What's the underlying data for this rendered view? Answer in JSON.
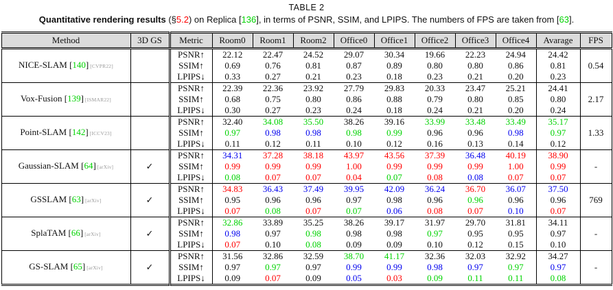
{
  "page": {
    "title": "TABLE 2"
  },
  "caption": {
    "bold": "Quantitative rendering results",
    "s1": " (§",
    "sec": "5.2",
    "s2": ") on Replica [",
    "ref1": "136",
    "s3": "], in terms of PSNR, SSIM, and LPIPS. The numbers of FPS are taken from [",
    "ref2": "63",
    "s4": "]."
  },
  "palette": {
    "black": "#111111",
    "red": "#ff0000",
    "green": "#00d300",
    "blue": "#0000ee",
    "venue_gray": "#999999",
    "header_bg": "#dcdcdc",
    "border": "#000000"
  },
  "table": {
    "brackets": [
      "[",
      "]"
    ],
    "check_glyph": "✓",
    "header": {
      "method": "Method",
      "gs": "3D GS",
      "metric": "Metric",
      "scenes": [
        "Room0",
        "Room1",
        "Room2",
        "Office0",
        "Office1",
        "Office2",
        "Office3",
        "Office4"
      ],
      "average": "Avarage",
      "fps": "FPS"
    },
    "methods": [
      {
        "name": "NICE-SLAM",
        "cite": "140",
        "venue": "CVPR22",
        "gs": false,
        "fps": "0.54",
        "rows": [
          {
            "metric": "PSNR↑",
            "cells": [
              "22.12",
              "22.47",
              "24.52",
              "29.07",
              "30.34",
              "19.66",
              "22.23",
              "24.94",
              "24.42"
            ]
          },
          {
            "metric": "SSIM↑",
            "cells": [
              "0.69",
              "0.76",
              "0.81",
              "0.87",
              "0.89",
              "0.80",
              "0.80",
              "0.86",
              "0.81"
            ]
          },
          {
            "metric": "LPIPS↓",
            "cells": [
              "0.33",
              "0.27",
              "0.21",
              "0.23",
              "0.18",
              "0.23",
              "0.21",
              "0.20",
              "0.23"
            ]
          }
        ]
      },
      {
        "name": "Vox-Fusion",
        "cite": "139",
        "venue": "ISMAR22",
        "gs": false,
        "fps": "2.17",
        "rows": [
          {
            "metric": "PSNR↑",
            "cells": [
              "22.39",
              "22.36",
              "23.92",
              "27.79",
              "29.83",
              "20.33",
              "23.47",
              "25.21",
              "24.41"
            ]
          },
          {
            "metric": "SSIM↑",
            "cells": [
              "0.68",
              "0.75",
              "0.80",
              "0.86",
              "0.88",
              "0.79",
              "0.80",
              "0.85",
              "0.80"
            ]
          },
          {
            "metric": "LPIPS↓",
            "cells": [
              "0.30",
              "0.27",
              "0.23",
              "0.24",
              "0.18",
              "0.24",
              "0.21",
              "0.20",
              "0.24"
            ]
          }
        ]
      },
      {
        "name": "Point-SLAM",
        "cite": "142",
        "venue": "ICCV23",
        "gs": false,
        "fps": "1.33",
        "rows": [
          {
            "metric": "PSNR↑",
            "cells": [
              "32.40",
              {
                "v": "34.08",
                "c": "green"
              },
              {
                "v": "35.50",
                "c": "green"
              },
              "38.26",
              "39.16",
              {
                "v": "33.99",
                "c": "green"
              },
              {
                "v": "33.48",
                "c": "green"
              },
              {
                "v": "33.49",
                "c": "green"
              },
              {
                "v": "35.17",
                "c": "green"
              }
            ]
          },
          {
            "metric": "SSIM↑",
            "cells": [
              {
                "v": "0.97",
                "c": "green"
              },
              {
                "v": "0.98",
                "c": "blue"
              },
              {
                "v": "0.98",
                "c": "blue"
              },
              {
                "v": "0.98",
                "c": "green"
              },
              {
                "v": "0.99",
                "c": "green"
              },
              "0.96",
              "0.96",
              {
                "v": "0.98",
                "c": "blue"
              },
              {
                "v": "0.97",
                "c": "green"
              }
            ]
          },
          {
            "metric": "LPIPS↓",
            "cells": [
              "0.11",
              "0.12",
              "0.11",
              "0.10",
              "0.12",
              "0.16",
              "0.13",
              "0.14",
              "0.12"
            ]
          }
        ]
      },
      {
        "name": "Gaussian-SLAM",
        "cite": "64",
        "venue": "arXiv",
        "gs": true,
        "fps": "-",
        "rows": [
          {
            "metric": "PSNR↑",
            "cells": [
              {
                "v": "34.31",
                "c": "blue"
              },
              {
                "v": "37.28",
                "c": "red"
              },
              {
                "v": "38.18",
                "c": "red"
              },
              {
                "v": "43.97",
                "c": "red"
              },
              {
                "v": "43.56",
                "c": "red"
              },
              {
                "v": "37.39",
                "c": "red"
              },
              {
                "v": "36.48",
                "c": "blue"
              },
              {
                "v": "40.19",
                "c": "red"
              },
              {
                "v": "38.90",
                "c": "red"
              }
            ]
          },
          {
            "metric": "SSIM↑",
            "cells": [
              {
                "v": "0.99",
                "c": "red"
              },
              {
                "v": "0.99",
                "c": "red"
              },
              {
                "v": "0.99",
                "c": "red"
              },
              {
                "v": "1.00",
                "c": "red"
              },
              {
                "v": "0.99",
                "c": "red"
              },
              {
                "v": "0.99",
                "c": "red"
              },
              {
                "v": "0.99",
                "c": "red"
              },
              {
                "v": "1.00",
                "c": "red"
              },
              {
                "v": "0.99",
                "c": "red"
              }
            ]
          },
          {
            "metric": "LPIPS↓",
            "cells": [
              {
                "v": "0.08",
                "c": "green"
              },
              {
                "v": "0.07",
                "c": "red"
              },
              {
                "v": "0.07",
                "c": "red"
              },
              {
                "v": "0.04",
                "c": "red"
              },
              {
                "v": "0.07",
                "c": "green"
              },
              {
                "v": "0.08",
                "c": "red"
              },
              {
                "v": "0.08",
                "c": "blue"
              },
              {
                "v": "0.07",
                "c": "red"
              },
              {
                "v": "0.07",
                "c": "red"
              }
            ]
          }
        ]
      },
      {
        "name": "GSSLAM",
        "cite": "63",
        "venue": "arXiv",
        "gs": true,
        "fps": "769",
        "rows": [
          {
            "metric": "PSNR↑",
            "cells": [
              {
                "v": "34.83",
                "c": "red"
              },
              {
                "v": "36.43",
                "c": "blue"
              },
              {
                "v": "37.49",
                "c": "blue"
              },
              {
                "v": "39.95",
                "c": "blue"
              },
              {
                "v": "42.09",
                "c": "blue"
              },
              {
                "v": "36.24",
                "c": "blue"
              },
              {
                "v": "36.70",
                "c": "red"
              },
              {
                "v": "36.07",
                "c": "blue"
              },
              {
                "v": "37.50",
                "c": "blue"
              }
            ]
          },
          {
            "metric": "SSIM↑",
            "cells": [
              "0.95",
              "0.96",
              "0.96",
              "0.97",
              "0.98",
              "0.96",
              {
                "v": "0.96",
                "c": "green"
              },
              "0.96",
              "0.96"
            ]
          },
          {
            "metric": "LPIPS↓",
            "cells": [
              {
                "v": "0.07",
                "c": "red"
              },
              {
                "v": "0.08",
                "c": "green"
              },
              {
                "v": "0.07",
                "c": "red"
              },
              {
                "v": "0.07",
                "c": "green"
              },
              {
                "v": "0.06",
                "c": "blue"
              },
              {
                "v": "0.08",
                "c": "red"
              },
              {
                "v": "0.07",
                "c": "red"
              },
              {
                "v": "0.10",
                "c": "blue"
              },
              {
                "v": "0.07",
                "c": "red"
              }
            ]
          }
        ]
      },
      {
        "name": "SplaTAM",
        "cite": "66",
        "venue": "arXiv",
        "gs": true,
        "fps": "-",
        "rows": [
          {
            "metric": "PSNR↑",
            "cells": [
              {
                "v": "32.86",
                "c": "green"
              },
              "33.89",
              "35.25",
              "38.26",
              "39.17",
              "31.97",
              "29.70",
              "31.81",
              "34.11"
            ]
          },
          {
            "metric": "SSIM↑",
            "cells": [
              {
                "v": "0.98",
                "c": "blue"
              },
              "0.97",
              {
                "v": "0.98",
                "c": "green"
              },
              "0.98",
              "0.98",
              {
                "v": "0.97",
                "c": "green"
              },
              "0.95",
              "0.95",
              "0.97"
            ]
          },
          {
            "metric": "LPIPS↓",
            "cells": [
              {
                "v": "0.07",
                "c": "red"
              },
              "0.10",
              {
                "v": "0.08",
                "c": "green"
              },
              "0.09",
              "0.09",
              "0.10",
              "0.12",
              "0.15",
              "0.10"
            ]
          }
        ]
      },
      {
        "name": "GS-SLAM",
        "cite": "65",
        "venue": "arXiv",
        "gs": true,
        "fps": "-",
        "rows": [
          {
            "metric": "PSNR↑",
            "cells": [
              "31.56",
              "32.86",
              "32.59",
              {
                "v": "38.70",
                "c": "green"
              },
              {
                "v": "41.17",
                "c": "green"
              },
              "32.36",
              "32.03",
              "32.92",
              "34.27"
            ]
          },
          {
            "metric": "SSIM↑",
            "cells": [
              "0.97",
              {
                "v": "0.97",
                "c": "green"
              },
              "0.97",
              {
                "v": "0.99",
                "c": "blue"
              },
              {
                "v": "0.99",
                "c": "blue"
              },
              {
                "v": "0.98",
                "c": "blue"
              },
              {
                "v": "0.97",
                "c": "blue"
              },
              {
                "v": "0.97",
                "c": "green"
              },
              {
                "v": "0.97",
                "c": "blue"
              }
            ]
          },
          {
            "metric": "LPIPS↓",
            "cells": [
              "0.09",
              {
                "v": "0.07",
                "c": "red"
              },
              "0.09",
              {
                "v": "0.05",
                "c": "blue"
              },
              {
                "v": "0.03",
                "c": "red"
              },
              {
                "v": "0.09",
                "c": "green"
              },
              {
                "v": "0.11",
                "c": "green"
              },
              {
                "v": "0.11",
                "c": "green"
              },
              {
                "v": "0.08",
                "c": "green"
              }
            ]
          }
        ]
      }
    ]
  }
}
